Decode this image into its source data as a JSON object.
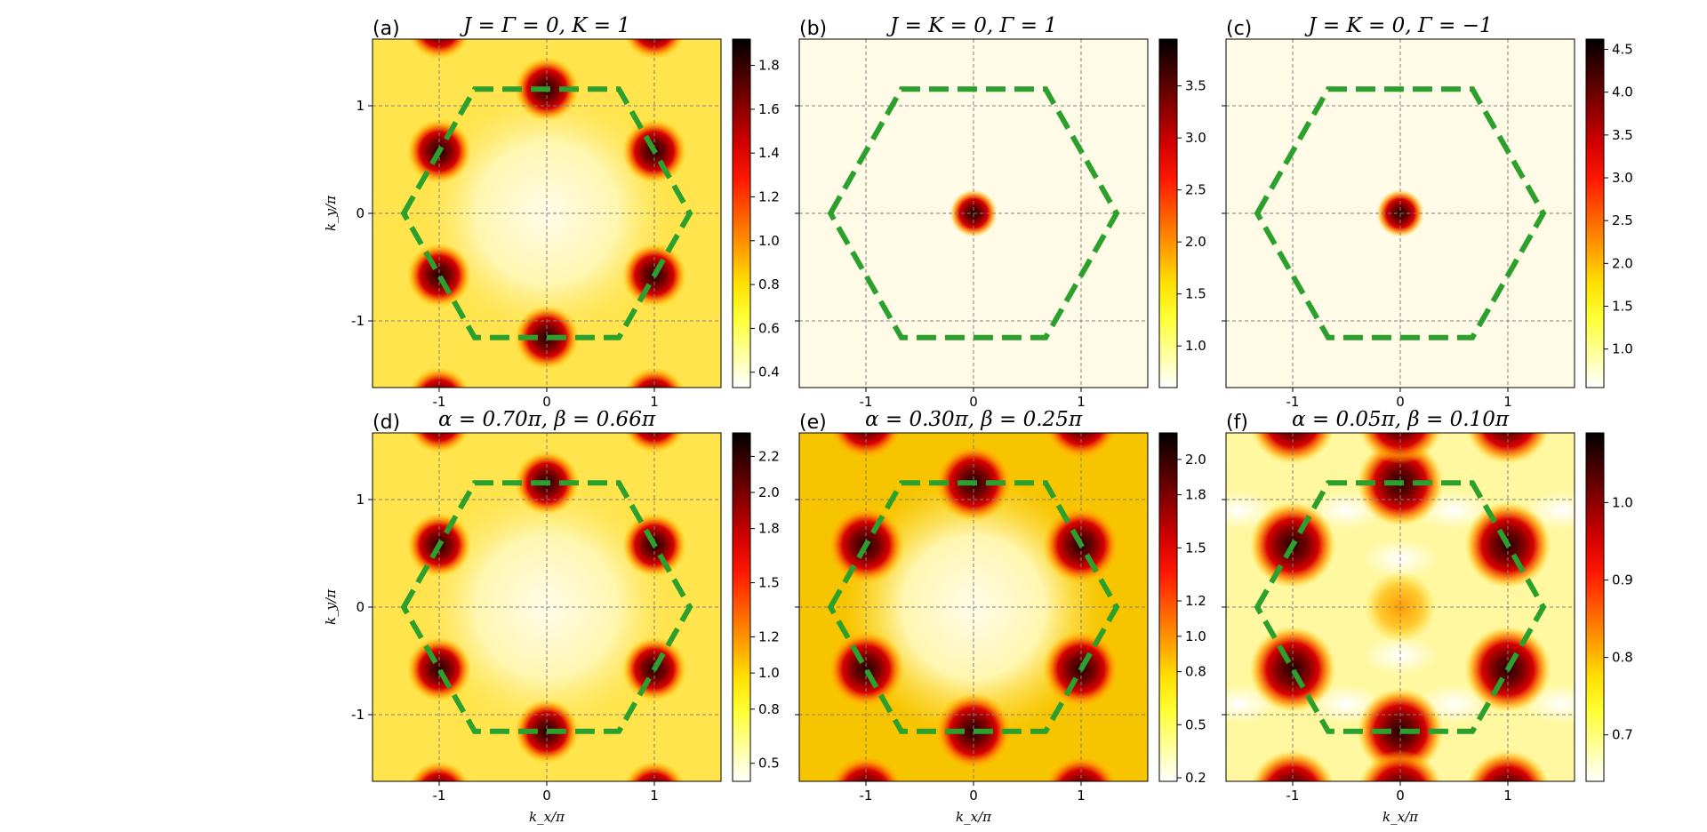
{
  "chart_data": [
    {
      "type": "heatmap",
      "panel_label": "(a)",
      "title": "J = Γ = 0, K = 1",
      "xlabel": "",
      "ylabel": "k_y/π",
      "x_ticks": [
        "-1",
        "0",
        "1"
      ],
      "y_ticks": [
        "1",
        "0",
        "-1"
      ],
      "xlim": [
        -1.62,
        1.62
      ],
      "ylim": [
        -1.62,
        1.62
      ],
      "colorbar_ticks": [
        "0.4",
        "0.6",
        "0.8",
        "1.0",
        "1.2",
        "1.4",
        "1.6",
        "1.8"
      ],
      "colorbar_range": [
        0.33,
        1.92
      ],
      "pattern": "six_corners",
      "grid": true
    },
    {
      "type": "heatmap",
      "panel_label": "(b)",
      "title": "J = K = 0, Γ = 1",
      "xlabel": "",
      "ylabel": "",
      "x_ticks": [
        "-1",
        "0",
        "1"
      ],
      "y_ticks": [],
      "xlim": [
        -1.62,
        1.62
      ],
      "ylim": [
        -1.62,
        1.62
      ],
      "colorbar_ticks": [
        "1.0",
        "1.5",
        "2.0",
        "2.5",
        "3.0",
        "3.5"
      ],
      "colorbar_range": [
        0.6,
        3.95
      ],
      "pattern": "center_peak",
      "grid": true
    },
    {
      "type": "heatmap",
      "panel_label": "(c)",
      "title": "J = K = 0, Γ = −1",
      "xlabel": "",
      "ylabel": "",
      "x_ticks": [
        "-1",
        "0",
        "1"
      ],
      "y_ticks": [],
      "xlim": [
        -1.62,
        1.62
      ],
      "ylim": [
        -1.62,
        1.62
      ],
      "colorbar_ticks": [
        "1.0",
        "1.5",
        "2.0",
        "2.5",
        "3.0",
        "3.5",
        "4.0",
        "4.5"
      ],
      "colorbar_range": [
        0.55,
        4.62
      ],
      "pattern": "center_peak",
      "grid": true
    },
    {
      "type": "heatmap",
      "panel_label": "(d)",
      "title": "α = 0.70π, β = 0.66π",
      "xlabel": "k_x/π",
      "ylabel": "k_y/π",
      "x_ticks": [
        "-1",
        "0",
        "1"
      ],
      "y_ticks": [
        "1",
        "0",
        "-1"
      ],
      "xlim": [
        -1.62,
        1.62
      ],
      "ylim": [
        -1.62,
        1.62
      ],
      "colorbar_ticks": [
        "0.5",
        "0.8",
        "1.0",
        "1.2",
        "1.5",
        "1.8",
        "2.0",
        "2.2"
      ],
      "colorbar_range": [
        0.4,
        2.33
      ],
      "pattern": "six_corners",
      "grid": true
    },
    {
      "type": "heatmap",
      "panel_label": "(e)",
      "title": "α = 0.30π, β = 0.25π",
      "xlabel": "k_x/π",
      "ylabel": "",
      "x_ticks": [
        "-1",
        "0",
        "1"
      ],
      "y_ticks": [],
      "xlim": [
        -1.62,
        1.62
      ],
      "ylim": [
        -1.62,
        1.62
      ],
      "colorbar_ticks": [
        "0.2",
        "0.5",
        "0.8",
        "1.0",
        "1.2",
        "1.5",
        "1.8",
        "2.0"
      ],
      "colorbar_range": [
        0.18,
        2.15
      ],
      "pattern": "six_corners_broad",
      "grid": true
    },
    {
      "type": "heatmap",
      "panel_label": "(f)",
      "title": "α = 0.05π, β = 0.10π",
      "xlabel": "k_x/π",
      "ylabel": "",
      "x_ticks": [
        "-1",
        "0",
        "1"
      ],
      "y_ticks": [],
      "xlim": [
        -1.62,
        1.62
      ],
      "ylim": [
        -1.62,
        1.62
      ],
      "colorbar_ticks": [
        "0.7",
        "0.8",
        "0.9",
        "1.0"
      ],
      "colorbar_range": [
        0.64,
        1.09
      ],
      "pattern": "mixed",
      "grid": true
    }
  ],
  "colors": {
    "brillouin_zone": "#2ca02c",
    "grid": "#808080",
    "colormap": "hot_r"
  }
}
